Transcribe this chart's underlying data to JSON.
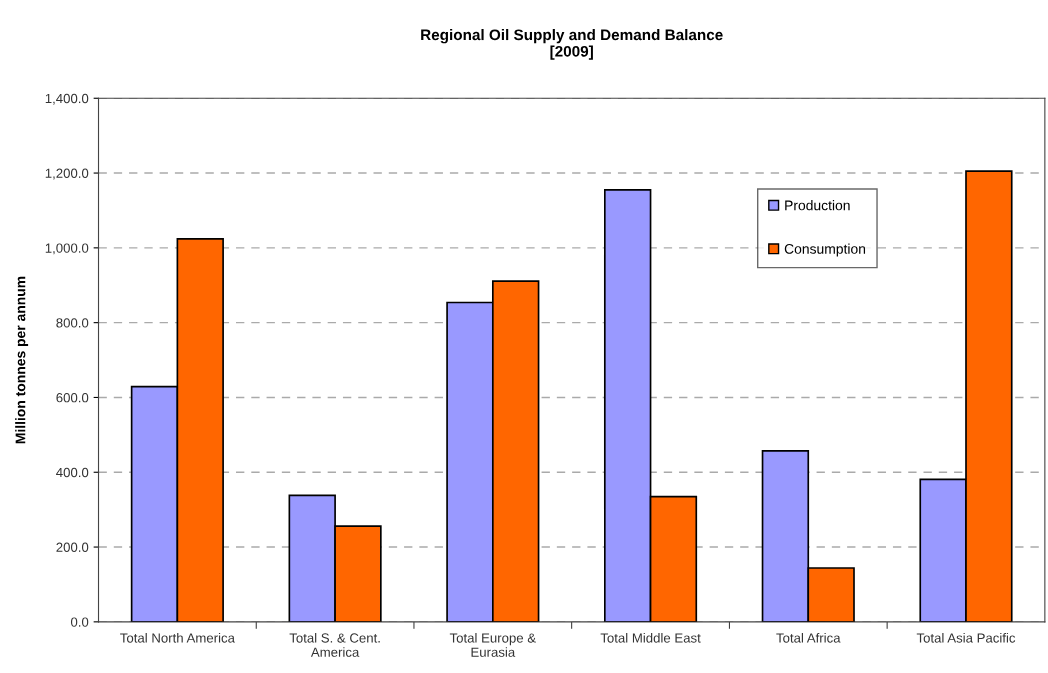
{
  "chart_data": {
    "type": "bar",
    "title": "Regional Oil Supply and Demand Balance\n[2009]",
    "ylabel": "Million tonnes per annum",
    "categories": [
      "Total North America",
      "Total S. & Cent.\nAmerica",
      "Total Europe &\nEurasia",
      "Total Middle East",
      "Total Africa",
      "Total Asia Pacific"
    ],
    "series": [
      {
        "name": "Production",
        "color": "#9999ff",
        "values": [
          629,
          338,
          854,
          1155,
          457,
          381
        ]
      },
      {
        "name": "Consumption",
        "color": "#ff6600",
        "values": [
          1024,
          256,
          911,
          335,
          144,
          1205
        ]
      }
    ],
    "ylim": [
      0,
      1400
    ],
    "yticks": [
      {
        "value": 0,
        "label": "0.0"
      },
      {
        "value": 200,
        "label": "200.0"
      },
      {
        "value": 400,
        "label": "400.0"
      },
      {
        "value": 600,
        "label": "600.0"
      },
      {
        "value": 800,
        "label": "800.0"
      },
      {
        "value": 1000,
        "label": "1,000.0"
      },
      {
        "value": 1200,
        "label": "1,200.0"
      },
      {
        "value": 1400,
        "label": "1,400.0"
      }
    ],
    "grid": "y",
    "legend": "top right"
  }
}
